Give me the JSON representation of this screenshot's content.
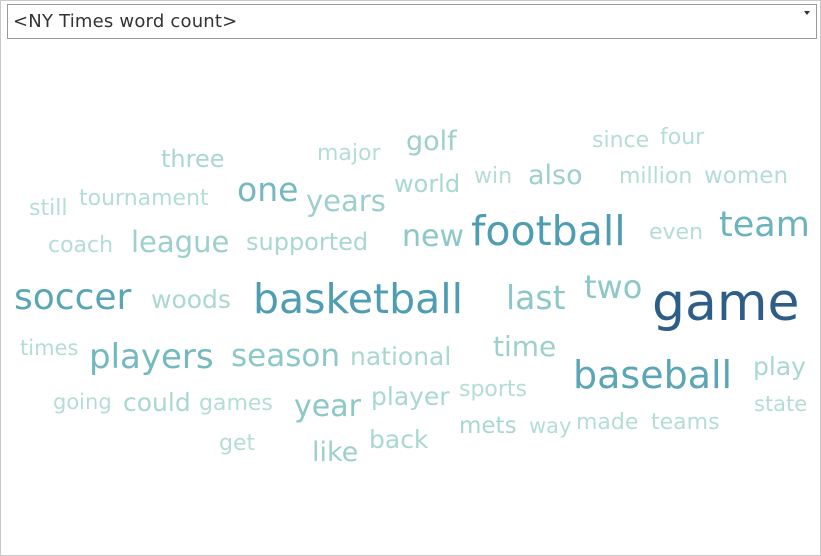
{
  "selector": {
    "label": "<NY Times word count>",
    "icon": "chevron-down-icon"
  },
  "cloud": {
    "words": [
      {
        "text": "game",
        "weight": 1.0,
        "color": "#2e5e87"
      },
      {
        "text": "basketball",
        "weight": 0.62,
        "color": "#4f9db2"
      },
      {
        "text": "football",
        "weight": 0.6,
        "color": "#4f9db2"
      },
      {
        "text": "baseball",
        "weight": 0.56,
        "color": "#5aa6b7"
      },
      {
        "text": "soccer",
        "weight": 0.52,
        "color": "#5aa6b7"
      },
      {
        "text": "team",
        "weight": 0.46,
        "color": "#6bb3bd"
      },
      {
        "text": "players",
        "weight": 0.44,
        "color": "#74b9c0"
      },
      {
        "text": "one",
        "weight": 0.42,
        "color": "#74b9c0"
      },
      {
        "text": "last",
        "weight": 0.42,
        "color": "#8cc8c8"
      },
      {
        "text": "two",
        "weight": 0.4,
        "color": "#8cc8c8"
      },
      {
        "text": "season",
        "weight": 0.38,
        "color": "#8cc8c8"
      },
      {
        "text": "year",
        "weight": 0.37,
        "color": "#8cc8c8"
      },
      {
        "text": "new",
        "weight": 0.36,
        "color": "#8cc8c8"
      },
      {
        "text": "league",
        "weight": 0.34,
        "color": "#9dd0cd"
      },
      {
        "text": "years",
        "weight": 0.33,
        "color": "#9dd0cd"
      },
      {
        "text": "time",
        "weight": 0.32,
        "color": "#9dd0cd"
      },
      {
        "text": "like",
        "weight": 0.31,
        "color": "#9dd0cd"
      },
      {
        "text": "golf",
        "weight": 0.3,
        "color": "#9dd0cd"
      },
      {
        "text": "also",
        "weight": 0.3,
        "color": "#9dd0cd"
      },
      {
        "text": "woods",
        "weight": 0.28,
        "color": "#a9d8d1"
      },
      {
        "text": "national",
        "weight": 0.28,
        "color": "#a9d8d1"
      },
      {
        "text": "could",
        "weight": 0.28,
        "color": "#a9d8d1"
      },
      {
        "text": "play",
        "weight": 0.28,
        "color": "#a9d8d1"
      },
      {
        "text": "back",
        "weight": 0.28,
        "color": "#a9d8d1"
      },
      {
        "text": "player",
        "weight": 0.27,
        "color": "#a9d8d1"
      },
      {
        "text": "supported",
        "weight": 0.26,
        "color": "#a9d8d1"
      },
      {
        "text": "three",
        "weight": 0.26,
        "color": "#a9d8d1"
      },
      {
        "text": "world",
        "weight": 0.26,
        "color": "#a9d8d1"
      },
      {
        "text": "mets",
        "weight": 0.25,
        "color": "#a9d8d1"
      },
      {
        "text": "games",
        "weight": 0.24,
        "color": "#b4ddd6"
      },
      {
        "text": "major",
        "weight": 0.24,
        "color": "#b4ddd6"
      },
      {
        "text": "women",
        "weight": 0.24,
        "color": "#b4ddd6"
      },
      {
        "text": "four",
        "weight": 0.24,
        "color": "#b4ddd6"
      },
      {
        "text": "coach",
        "weight": 0.23,
        "color": "#b4ddd6"
      },
      {
        "text": "sports",
        "weight": 0.23,
        "color": "#b4ddd6"
      },
      {
        "text": "since",
        "weight": 0.23,
        "color": "#b4ddd6"
      },
      {
        "text": "even",
        "weight": 0.23,
        "color": "#b4ddd6"
      },
      {
        "text": "tournament",
        "weight": 0.22,
        "color": "#b4ddd6"
      },
      {
        "text": "million",
        "weight": 0.22,
        "color": "#b4ddd6"
      },
      {
        "text": "made",
        "weight": 0.22,
        "color": "#b4ddd6"
      },
      {
        "text": "teams",
        "weight": 0.22,
        "color": "#b4ddd6"
      },
      {
        "text": "still",
        "weight": 0.22,
        "color": "#b4ddd6"
      },
      {
        "text": "win",
        "weight": 0.22,
        "color": "#b4ddd6"
      },
      {
        "text": "get",
        "weight": 0.22,
        "color": "#b4ddd6"
      },
      {
        "text": "state",
        "weight": 0.21,
        "color": "#b4ddd6"
      },
      {
        "text": "times",
        "weight": 0.21,
        "color": "#b4ddd6"
      },
      {
        "text": "going",
        "weight": 0.21,
        "color": "#b4ddd6"
      },
      {
        "text": "way",
        "weight": 0.21,
        "color": "#b4ddd6"
      }
    ]
  }
}
